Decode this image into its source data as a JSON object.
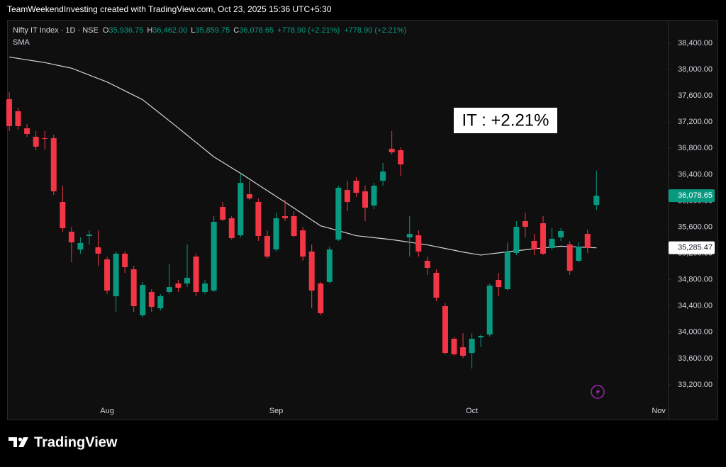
{
  "top_bar": {
    "text": "TeamWeekendInvesting created with TradingView.com, Oct 23, 2025 15:36 UTC+5:30"
  },
  "footer": {
    "brand": "TradingView"
  },
  "chart_data": {
    "type": "candlestick",
    "title": "Nifty IT Index · 1D · NSE",
    "ohlc_legend": [
      {
        "key": "O",
        "value": "35,936.75"
      },
      {
        "key": "H",
        "value": "36,462.00"
      },
      {
        "key": "L",
        "value": "35,859.75"
      },
      {
        "key": "C",
        "value": "36,078.65"
      }
    ],
    "change_labels": [
      "+778.90 (+2.21%)",
      "+778.90 (+2.21%)"
    ],
    "annotation": "IT : +2.21%",
    "up_color": "#089981",
    "down_color": "#f23645",
    "grid": false,
    "categories": [
      null,
      null,
      null,
      null,
      null,
      null,
      null,
      null,
      null,
      null,
      null,
      "Aug",
      null,
      null,
      null,
      null,
      null,
      null,
      null,
      null,
      null,
      null,
      null,
      null,
      null,
      null,
      null,
      null,
      null,
      null,
      "Sep",
      null,
      null,
      null,
      null,
      null,
      null,
      null,
      null,
      null,
      null,
      null,
      null,
      null,
      null,
      null,
      null,
      null,
      null,
      null,
      null,
      null,
      "Oct",
      null,
      null,
      null,
      null,
      null,
      null,
      null,
      null,
      null,
      null,
      null,
      null,
      null,
      null,
      null,
      null,
      null,
      null,
      null,
      null,
      "Nov"
    ],
    "open": [
      37548,
      37364,
      37105,
      36976,
      36954,
      36954,
      35983,
      35530,
      35260,
      35465,
      35293,
      35109,
      34548,
      35196,
      34958,
      34257,
      34613,
      34365,
      34613,
      34742,
      34742,
      35152,
      34613,
      34634,
      35908,
      35735,
      35476,
      36102,
      35983,
      35465,
      35260,
      35767,
      35767,
      35551,
      35228,
      34742,
      34764,
      35411,
      36166,
      36307,
      36145,
      35929,
      36307,
      36793,
      36771,
      35444,
      35476,
      35088,
      34904,
      34397,
      33901,
      33771,
      33685,
      33922,
      33965,
      34796,
      34656,
      35206,
      35692,
      35390,
      35659,
      35282,
      35444,
      35336,
      35088,
      35498,
      35936.75,
      null,
      null,
      null,
      null,
      null,
      null,
      null
    ],
    "high": [
      37656,
      37418,
      37170,
      37062,
      37062,
      37008,
      36231,
      35605,
      35444,
      35551,
      35551,
      35152,
      35228,
      35228,
      35012,
      34764,
      34656,
      34580,
      35044,
      34796,
      35336,
      35195,
      34796,
      35767,
      35983,
      35767,
      36415,
      36307,
      36037,
      35551,
      35821,
      36016,
      35843,
      35605,
      35336,
      34764,
      35303,
      36231,
      36307,
      36361,
      36231,
      36274,
      36577,
      37062,
      36814,
      35767,
      35551,
      35152,
      34958,
      34440,
      33933,
      33987,
      33987,
      33965,
      34742,
      34904,
      35368,
      35692,
      35821,
      35498,
      35767,
      35584,
      35584,
      35390,
      35368,
      35562,
      36462,
      null,
      null,
      null,
      null,
      null,
      null,
      null
    ],
    "low": [
      37062,
      37084,
      36976,
      36771,
      36782,
      36091,
      35530,
      35066,
      35195,
      35336,
      35012,
      34580,
      34311,
      34904,
      34311,
      34224,
      34311,
      34332,
      34580,
      34613,
      34688,
      34548,
      34580,
      34613,
      35692,
      35411,
      35444,
      36016,
      35390,
      35120,
      35228,
      35692,
      35444,
      35088,
      34365,
      34257,
      34742,
      35390,
      35843,
      36059,
      35692,
      35875,
      36231,
      36706,
      36383,
      35152,
      35152,
      34872,
      34472,
      33663,
      33642,
      33609,
      33447,
      33771,
      33933,
      34548,
      34634,
      35174,
      35444,
      35174,
      35174,
      35250,
      35390,
      34872,
      35066,
      35206,
      35859.75,
      null,
      null,
      null,
      null,
      null,
      null,
      null
    ],
    "close": [
      37138,
      37138,
      37019,
      36825,
      36943,
      36145,
      35584,
      35368,
      35358,
      35487,
      35196,
      34634,
      35196,
      34991,
      34397,
      34721,
      34386,
      34548,
      34688,
      34677,
      34829,
      34613,
      34742,
      35681,
      35713,
      35433,
      36274,
      36037,
      35465,
      35152,
      35735,
      35735,
      35465,
      35152,
      34634,
      34289,
      35260,
      36199,
      35983,
      36123,
      35897,
      36231,
      36447,
      36739,
      36555,
      35497,
      35228,
      34980,
      34526,
      33685,
      33663,
      33642,
      33901,
      33944,
      34710,
      34688,
      35228,
      35605,
      35605,
      35260,
      35196,
      35422,
      35541,
      34936,
      35303,
      35282,
      36078.65,
      null,
      null,
      null,
      null,
      null,
      null,
      null
    ],
    "last_close_label": "36,078.65",
    "sma": {
      "name": "SMA",
      "color": "#d1d4dc",
      "last_label": "35,285.47",
      "values": [
        38190,
        38169,
        38147,
        38126,
        38105,
        38077,
        38048,
        38020,
        37968,
        37915,
        37863,
        37810,
        37743,
        37675,
        37608,
        37540,
        37433,
        37325,
        37218,
        37110,
        37000,
        36890,
        36780,
        36670,
        36587,
        36503,
        36420,
        36332,
        36244,
        36156,
        36068,
        35980,
        35890,
        35800,
        35710,
        35620,
        35583,
        35545,
        35508,
        35470,
        35455,
        35440,
        35425,
        35410,
        35390,
        35370,
        35350,
        35330,
        35303,
        35275,
        35248,
        35220,
        35198,
        35175,
        35192,
        35208,
        35225,
        35240,
        35255,
        35270,
        35283,
        35297,
        35310,
        35304,
        35297,
        35291,
        35285.47,
        null,
        null,
        null,
        null,
        null,
        null,
        null
      ]
    },
    "ylim": [
      32930,
      38756
    ],
    "yticks": [
      {
        "value": 33200,
        "label": "33,200.00"
      },
      {
        "value": 33600,
        "label": "33,600.00"
      },
      {
        "value": 34000,
        "label": "34,000.00"
      },
      {
        "value": 34400,
        "label": "34,400.00"
      },
      {
        "value": 34800,
        "label": "34,800.00"
      },
      {
        "value": 35200,
        "label": "35,200.00"
      },
      {
        "value": 35600,
        "label": "35,600.00"
      },
      {
        "value": 36000,
        "label": "36,000.00"
      },
      {
        "value": 36400,
        "label": "36,400.00"
      },
      {
        "value": 36800,
        "label": "36,800.00"
      },
      {
        "value": 37200,
        "label": "37,200.00"
      },
      {
        "value": 37600,
        "label": "37,600.00"
      },
      {
        "value": 38000,
        "label": "38,000.00"
      },
      {
        "value": 38400,
        "label": "38,400.00"
      }
    ]
  }
}
